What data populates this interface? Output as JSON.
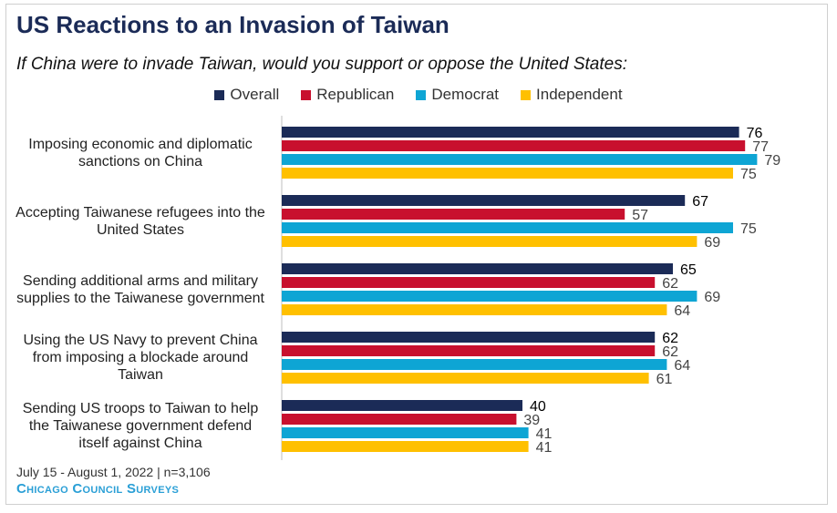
{
  "header": {
    "title": "US Reactions to an Invasion of Taiwan",
    "subtitle": "If China were to invade Taiwan, would you support or oppose the United States:"
  },
  "footer": {
    "note": "July 15 - August 1, 2022 | n=3,106",
    "source": "Chicago Council Surveys"
  },
  "chart_data": {
    "type": "bar",
    "orientation": "horizontal",
    "title": "US Reactions to an Invasion of Taiwan",
    "subtitle": "If China were to invade Taiwan, would you support or oppose the United States:",
    "categories": [
      "Imposing economic and diplomatic sanctions on China",
      "Accepting Taiwanese refugees into the United States",
      "Sending additional arms and military supplies to the Taiwanese government",
      "Using the US Navy to prevent China from imposing a blockade around Taiwan",
      "Sending US troops to Taiwan to help the Taiwanese government defend itself against China"
    ],
    "series": [
      {
        "name": "Overall",
        "color": "#1b2b57",
        "values": [
          76,
          67,
          65,
          62,
          40
        ]
      },
      {
        "name": "Republican",
        "color": "#c8102e",
        "values": [
          77,
          57,
          62,
          62,
          39
        ]
      },
      {
        "name": "Democrat",
        "color": "#0ea5d4",
        "values": [
          79,
          75,
          69,
          64,
          41
        ]
      },
      {
        "name": "Independent",
        "color": "#ffc000",
        "values": [
          75,
          69,
          64,
          61,
          41
        ]
      }
    ],
    "xlim": [
      0,
      100
    ],
    "legend_position": "top",
    "grid": false,
    "data_labels": true
  }
}
